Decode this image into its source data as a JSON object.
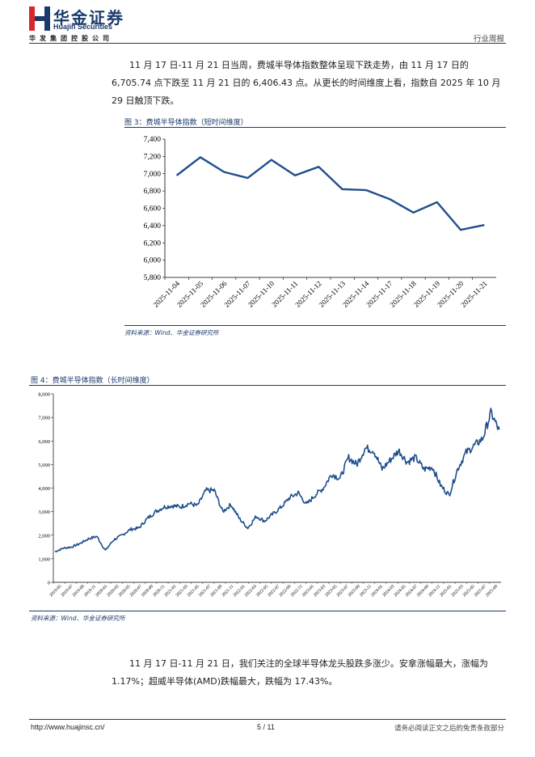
{
  "header": {
    "logo_cn": "华金证券",
    "logo_en": "Huajin Securities",
    "company": "华发集团控股公司",
    "report_type": "行业周报"
  },
  "paragraph1": "11 月 17 日-11 月 21 日当周，费城半导体指数整体呈现下跌走势，由 11 月 17 日的 6,705.74 点下跌至 11 月 21 日的 6,406.43 点。从更长的时间维度上看，指数自 2025 年 10 月 29 日触顶下跌。",
  "figure3": {
    "title": "图 3：费城半导体指数（短时间维度）",
    "source": "资料来源：Wind、华金证券研究所"
  },
  "figure4": {
    "title": "图 4：费城半导体指数（长时间维度）",
    "source": "资料来源：Wind、华金证券研究所"
  },
  "paragraph2": "11 月 17 日-11 月 21 日，我们关注的全球半导体龙头股跌多涨少。安拿涨幅最大，涨幅为 1.17%；超威半导体(AMD)跌幅最大，跌幅为 17.43%。",
  "footer": {
    "url": "http://www.huajinsc.cn/",
    "page": "5 / 11",
    "disclaimer": "请务必阅读正文之后的免责条款部分"
  },
  "colors": {
    "brand": "#1b3a6b",
    "line": "#1f4e8c",
    "logo_red": "#d7282f"
  },
  "chart_data": [
    {
      "type": "line",
      "title": "费城半导体指数（短时间维度）",
      "categories": [
        "2025-11-04",
        "2025-11-05",
        "2025-11-06",
        "2025-11-07",
        "2025-11-10",
        "2025-11-11",
        "2025-11-12",
        "2025-11-13",
        "2025-11-14",
        "2025-11-17",
        "2025-11-18",
        "2025-11-19",
        "2025-11-20",
        "2025-11-21"
      ],
      "values": [
        6980,
        7190,
        7020,
        6950,
        7160,
        6980,
        7080,
        6820,
        6810,
        6705.74,
        6550,
        6670,
        6350,
        6406.43
      ],
      "yticks": [
        "5,800",
        "6,000",
        "6,200",
        "6,400",
        "6,600",
        "6,800",
        "7,000",
        "7,200",
        "7,400"
      ],
      "ylim": [
        5800,
        7400
      ],
      "grid": false
    },
    {
      "type": "line",
      "title": "费城半导体指数（长时间维度）",
      "x_labels": [
        "2019-05",
        "2019-07",
        "2019-09",
        "2019-11",
        "2020-01",
        "2020-03",
        "2020-05",
        "2020-07",
        "2020-09",
        "2020-11",
        "2021-01",
        "2021-03",
        "2021-05",
        "2021-07",
        "2021-09",
        "2021-11",
        "2022-01",
        "2022-03",
        "2022-05",
        "2022-07",
        "2022-09",
        "2022-11",
        "2023-01",
        "2023-03",
        "2023-05",
        "2023-07",
        "2023-09",
        "2023-11",
        "2024-01",
        "2024-03",
        "2024-05",
        "2024-07",
        "2024-09",
        "2024-11",
        "2025-01",
        "2025-03",
        "2025-05",
        "2025-07",
        "2025-09"
      ],
      "key_values": [
        1300,
        1450,
        1500,
        1650,
        1850,
        1950,
        1350,
        1800,
        2000,
        2250,
        2300,
        2700,
        3000,
        3200,
        3250,
        3200,
        3350,
        3250,
        3900,
        3900,
        3000,
        3300,
        2700,
        2300,
        2800,
        2600,
        2900,
        3200,
        3600,
        3800,
        3300,
        3700,
        4000,
        4600,
        4400,
        5300,
        5000,
        5700,
        5600,
        4800,
        5200,
        5600,
        5100,
        5300,
        4800,
        4900,
        4100,
        3700,
        4800,
        5500,
        5800,
        6100,
        7200,
        6400
      ],
      "yticks": [
        "0",
        "1,000",
        "2,000",
        "3,000",
        "4,000",
        "5,000",
        "6,000",
        "7,000",
        "8,000"
      ],
      "ylim": [
        0,
        8000
      ],
      "grid": false
    }
  ]
}
